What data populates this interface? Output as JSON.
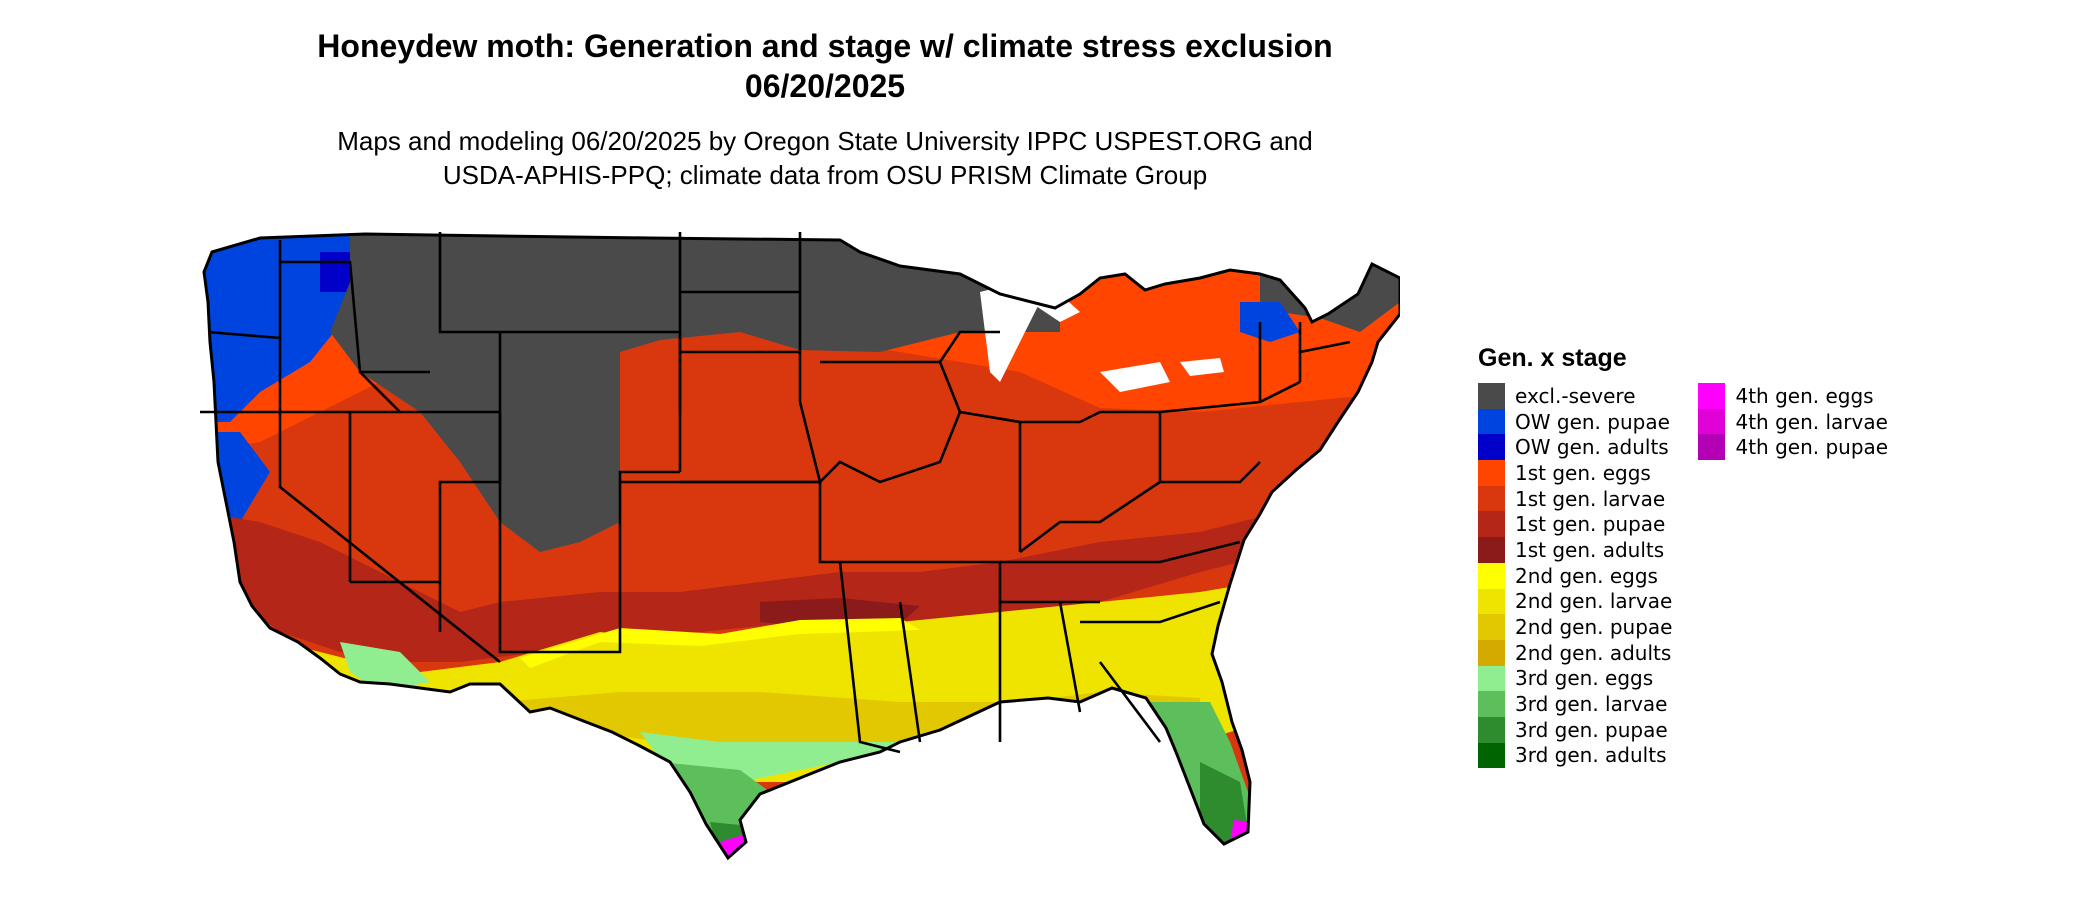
{
  "title": {
    "line1": "Honeydew moth: Generation and stage w/ climate stress exclusion",
    "line2": "06/20/2025"
  },
  "subtitle": {
    "line1": "Maps and modeling 06/20/2025 by Oregon State University IPPC USPEST.ORG and",
    "line2": "USDA-APHIS-PPQ; climate data from OSU PRISM Climate Group"
  },
  "legend": {
    "title": "Gen. x stage",
    "column1": [
      {
        "label": "excl.-severe",
        "color": "#4a4a4a"
      },
      {
        "label": "OW gen. pupae",
        "color": "#0044e0"
      },
      {
        "label": "OW gen. adults",
        "color": "#0000c8"
      },
      {
        "label": "1st gen. eggs",
        "color": "#ff4500"
      },
      {
        "label": "1st gen. larvae",
        "color": "#d9380e"
      },
      {
        "label": "1st gen. pupae",
        "color": "#b42617"
      },
      {
        "label": "1st gen. adults",
        "color": "#8b1a1a"
      },
      {
        "label": "2nd gen. eggs",
        "color": "#ffff00"
      },
      {
        "label": "2nd gen. larvae",
        "color": "#eee400"
      },
      {
        "label": "2nd gen. pupae",
        "color": "#e2c800"
      },
      {
        "label": "2nd gen. adults",
        "color": "#d4aa00"
      },
      {
        "label": "3rd gen. eggs",
        "color": "#90ee90"
      },
      {
        "label": "3rd gen. larvae",
        "color": "#5cbf5c"
      },
      {
        "label": "3rd gen. pupae",
        "color": "#2e8b2e"
      },
      {
        "label": "3rd gen. adults",
        "color": "#006400"
      }
    ],
    "column2": [
      {
        "label": "4th gen. eggs",
        "color": "#ff00ff"
      },
      {
        "label": "4th gen. larvae",
        "color": "#e000d8"
      },
      {
        "label": "4th gen. pupae",
        "color": "#b400b4"
      }
    ]
  },
  "map": {
    "region": "contiguous United States",
    "excluded_regions": [
      "Northern Rockies",
      "Northern Plains",
      "Upper Midwest",
      "Northern Maine"
    ],
    "dominant_stage_central": "1st gen. larvae",
    "dominant_stage_south": "2nd gen. larvae",
    "stage_coastal_gulf_florida": "3rd gen. larvae",
    "stage_tip_florida_south_texas": "4th gen. eggs"
  }
}
